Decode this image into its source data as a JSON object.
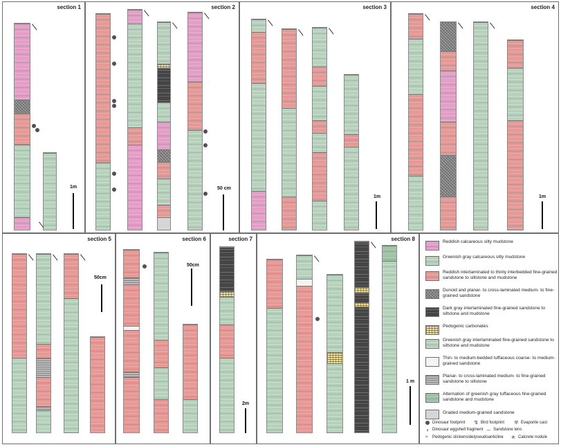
{
  "sections": [
    {
      "title": "section 1"
    },
    {
      "title": "section 2"
    },
    {
      "title": "section 3"
    },
    {
      "title": "section 4"
    },
    {
      "title": "section 5"
    },
    {
      "title": "section 6"
    },
    {
      "title": "section 7"
    },
    {
      "title": "section 8"
    }
  ],
  "scales": {
    "s1": "1m",
    "s2": "50 cm",
    "s3": "1m",
    "s4": "1m",
    "s5": "50cm",
    "s6": "50cm",
    "s7": "2m",
    "s8": "1 m"
  },
  "legend": {
    "pink": "Reddish calcareous silty mudstone",
    "green": "Greenish gray calcareous silty mudstone",
    "red": "Reddish interlaminated to thinly interbedded fine-grained sandstone to siltstone and mudstone",
    "dune": "Dunoid and planar- to cross-laminated medium- to fine-grained sandstone",
    "dark": "Dark gray interlaminated fine-grained sandstone to siltstone and mudstone",
    "pedo": "Pedogenic carbonates",
    "greengray": "Greenish gray interlaminated fine-grained sandstone to siltstone and mudstone",
    "thin": "Thin- to medium-bedded tuffaceous coarse- to medium-grained sandstone",
    "planar": "Planar- to cross-laminated medium- to fine-grained sandstone to siltstone",
    "alt": "Alternation of greenish gray tuffaceous fine-grained sandstone and mudstone",
    "graded": "Graded medium-grained sandstone"
  },
  "symbols": {
    "dino_foot": "Dinosaur footprint",
    "bird_foot": "Bird footprint",
    "evaporite": "Evaporite cast",
    "eggshell": "Dinosaur eggshell fragment",
    "lens": "Sandstone lens",
    "slick": "Pedogenic slickenside/pseudoanticline",
    "calcrete": "Calcrete nodule"
  }
}
